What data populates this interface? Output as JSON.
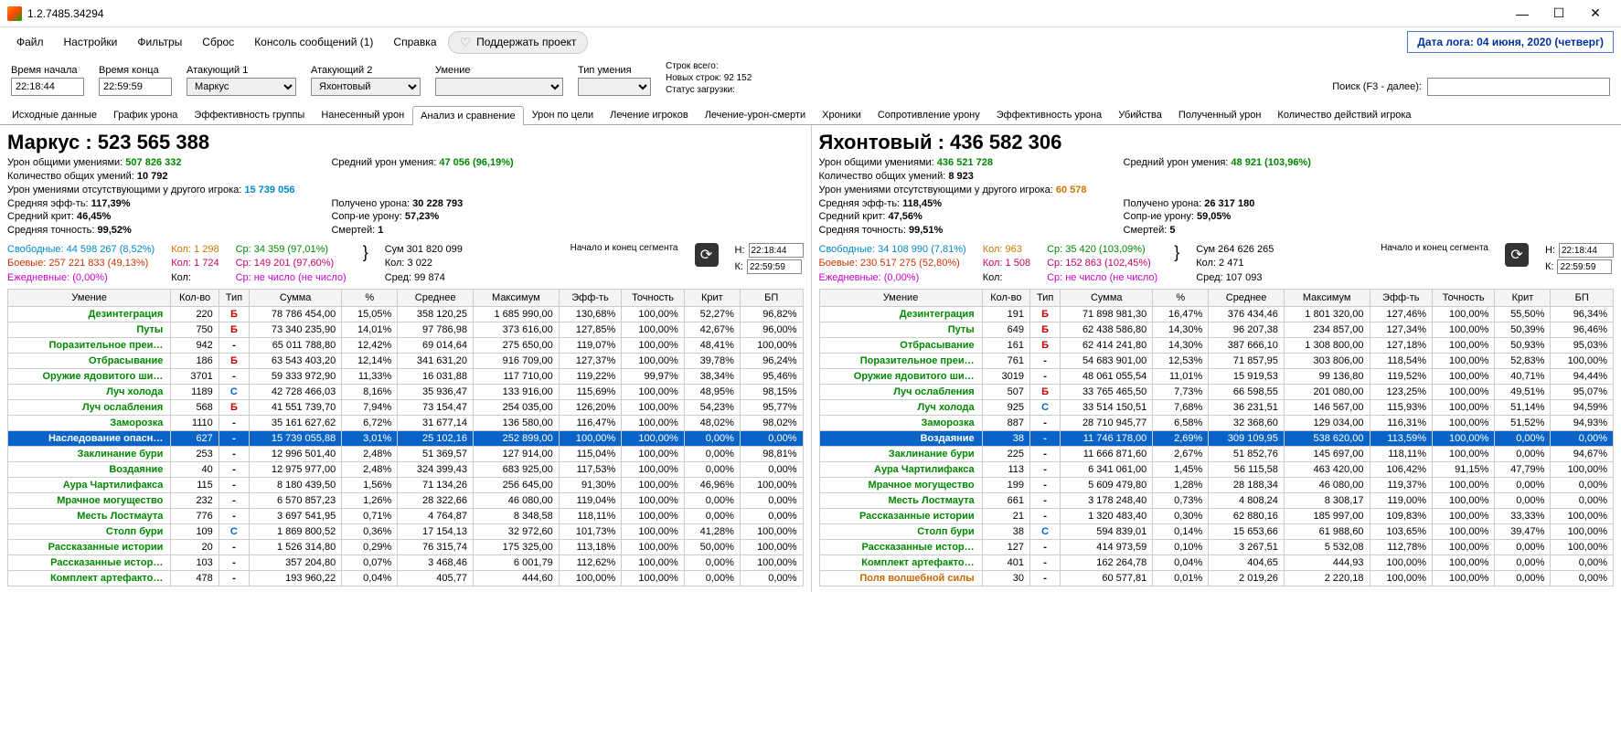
{
  "window": {
    "title": "1.2.7485.34294"
  },
  "menu": {
    "file": "Файл",
    "settings": "Настройки",
    "filters": "Фильтры",
    "reset": "Сброс",
    "console": "Консоль сообщений (1)",
    "help": "Справка",
    "support": "Поддержать проект"
  },
  "datelog": "Дата лога: 04 июня, 2020  (четверг)",
  "filters": {
    "time_start_lbl": "Время начала",
    "time_start": "22:18:44",
    "time_end_lbl": "Время конца",
    "time_end": "22:59:59",
    "att1_lbl": "Атакующий 1",
    "att1": "Маркус",
    "att2_lbl": "Атакующий 2",
    "att2": "Яхонтовый",
    "skill_lbl": "Умение",
    "skill": "",
    "skilltype_lbl": "Тип умения",
    "skilltype": "",
    "lines_total": "Строк всего:",
    "lines_new": "Новых строк: 92 152",
    "load_status": "Статус загрузки:",
    "search_lbl": "Поиск (F3 - далее):"
  },
  "tabs": [
    "Исходные данные",
    "График урона",
    "Эффективность группы",
    "Нанесенный урон",
    "Анализ и сравнение",
    "Урон по цели",
    "Лечение игроков",
    "Лечение-урон-смерти",
    "Хроники",
    "Сопротивление урону",
    "Эффективность урона",
    "Убийства",
    "Полученный урон",
    "Количество действий игрока"
  ],
  "active_tab": 4,
  "seg_lbl": "Начало и конец\nсегмента",
  "cols": [
    "Умение",
    "Кол-во",
    "Тип",
    "Сумма",
    "%",
    "Среднее",
    "Максимум",
    "Эфф-ть",
    "Точность",
    "Крит",
    "БП"
  ],
  "left": {
    "title_name": "Маркус : ",
    "title_num": "523 565 388",
    "l1a": "Урон общими умениями: ",
    "l1b": "507 826 332",
    "l1c": "Средний урон умения: ",
    "l1d": "47 056 (96,19%)",
    "l2a": "Количество общих умений: ",
    "l2b": "10 792",
    "l3a": "Урон умениями отсутствующими у другого игрока: ",
    "l3b": "15 739 056",
    "l4a": "Средняя эфф-ть: ",
    "l4b": "117,39%",
    "l4c": "Получено урона: ",
    "l4d": "30 228 793",
    "l5a": "Средний крит: ",
    "l5b": "46,45%",
    "l5c": "Сопр-ие урону: ",
    "l5d": "57,23%",
    "l6a": "Средняя точность: ",
    "l6b": "99,52%",
    "l6c": "Смертей: ",
    "l6d": "1",
    "s_free": "Свободные: 44 598 267 (8,52%)",
    "s_combat": "Боевые: 257 221 833 (49,13%)",
    "s_daily": "Ежедневные: (0,00%)",
    "s_n1": "Кол: 1 298",
    "s_n2": "Кол: 1 724",
    "s_n3": "Кол:",
    "s_avg1": "Ср: 34 359 (97,01%)",
    "s_avg2": "Ср: 149 201 (97,60%)",
    "s_nan": "Ср: не число (не число)",
    "s_sum": "Сум 301 820 099",
    "s_cnt": "Кол: 3 022",
    "s_mid": "Сред: 99 874",
    "seg_h": "22:18:44",
    "seg_k": "22:59:59",
    "rows": [
      {
        "s": "Дезинтеграция",
        "sc": "g",
        "n": "220",
        "t": "Б",
        "sum": "78 786 454,00",
        "p": "15,05%",
        "avg": "358 120,25",
        "max": "1 685 990,00",
        "e": "130,68%",
        "acc": "100,00%",
        "cr": "52,27%",
        "bp": "96,82%"
      },
      {
        "s": "Путы",
        "sc": "g",
        "n": "750",
        "t": "Б",
        "sum": "73 340 235,90",
        "p": "14,01%",
        "avg": "97 786,98",
        "max": "373 616,00",
        "e": "127,85%",
        "acc": "100,00%",
        "cr": "42,67%",
        "bp": "96,00%"
      },
      {
        "s": "Поразительное преи…",
        "sc": "g",
        "n": "942",
        "t": "-",
        "sum": "65 011 788,80",
        "p": "12,42%",
        "avg": "69 014,64",
        "max": "275 650,00",
        "e": "119,07%",
        "acc": "100,00%",
        "cr": "48,41%",
        "bp": "100,00%"
      },
      {
        "s": "Отбрасывание",
        "sc": "g",
        "n": "186",
        "t": "Б",
        "sum": "63 543 403,20",
        "p": "12,14%",
        "avg": "341 631,20",
        "max": "916 709,00",
        "e": "127,37%",
        "acc": "100,00%",
        "cr": "39,78%",
        "bp": "96,24%"
      },
      {
        "s": "Оружие ядовитого ши…",
        "sc": "g",
        "n": "3701",
        "t": "-",
        "sum": "59 333 972,90",
        "p": "11,33%",
        "avg": "16 031,88",
        "max": "117 710,00",
        "e": "119,22%",
        "acc": "99,97%",
        "cr": "38,34%",
        "bp": "95,46%"
      },
      {
        "s": "Луч холода",
        "sc": "g",
        "n": "1189",
        "t": "С",
        "sum": "42 728 466,03",
        "p": "8,16%",
        "avg": "35 936,47",
        "max": "133 916,00",
        "e": "115,69%",
        "acc": "100,00%",
        "cr": "48,95%",
        "bp": "98,15%"
      },
      {
        "s": "Луч ослабления",
        "sc": "g",
        "n": "568",
        "t": "Б",
        "sum": "41 551 739,70",
        "p": "7,94%",
        "avg": "73 154,47",
        "max": "254 035,00",
        "e": "126,20%",
        "acc": "100,00%",
        "cr": "54,23%",
        "bp": "95,77%"
      },
      {
        "s": "Заморозка",
        "sc": "g",
        "n": "1110",
        "t": "-",
        "sum": "35 161 627,62",
        "p": "6,72%",
        "avg": "31 677,14",
        "max": "136 580,00",
        "e": "116,47%",
        "acc": "100,00%",
        "cr": "48,02%",
        "bp": "98,02%"
      },
      {
        "s": "Наследование опасн…",
        "sc": "g",
        "n": "627",
        "t": "-",
        "sum": "15 739 055,88",
        "p": "3,01%",
        "avg": "25 102,16",
        "max": "252 899,00",
        "e": "100,00%",
        "acc": "100,00%",
        "cr": "0,00%",
        "bp": "0,00%",
        "sel": true
      },
      {
        "s": "Заклинание бури",
        "sc": "g",
        "n": "253",
        "t": "-",
        "sum": "12 996 501,40",
        "p": "2,48%",
        "avg": "51 369,57",
        "max": "127 914,00",
        "e": "115,04%",
        "acc": "100,00%",
        "cr": "0,00%",
        "bp": "98,81%"
      },
      {
        "s": "Воздаяние",
        "sc": "g",
        "n": "40",
        "t": "-",
        "sum": "12 975 977,00",
        "p": "2,48%",
        "avg": "324 399,43",
        "max": "683 925,00",
        "e": "117,53%",
        "acc": "100,00%",
        "cr": "0,00%",
        "bp": "0,00%"
      },
      {
        "s": "Аура Чартилифакса",
        "sc": "g",
        "n": "115",
        "t": "-",
        "sum": "8 180 439,50",
        "p": "1,56%",
        "avg": "71 134,26",
        "max": "256 645,00",
        "e": "91,30%",
        "acc": "100,00%",
        "cr": "46,96%",
        "bp": "100,00%"
      },
      {
        "s": "Мрачное могущество",
        "sc": "g",
        "n": "232",
        "t": "-",
        "sum": "6 570 857,23",
        "p": "1,26%",
        "avg": "28 322,66",
        "max": "46 080,00",
        "e": "119,04%",
        "acc": "100,00%",
        "cr": "0,00%",
        "bp": "0,00%"
      },
      {
        "s": "Месть Лостмаута",
        "sc": "g",
        "n": "776",
        "t": "-",
        "sum": "3 697 541,95",
        "p": "0,71%",
        "avg": "4 764,87",
        "max": "8 348,58",
        "e": "118,11%",
        "acc": "100,00%",
        "cr": "0,00%",
        "bp": "0,00%"
      },
      {
        "s": "Столп бури",
        "sc": "g",
        "n": "109",
        "t": "С",
        "sum": "1 869 800,52",
        "p": "0,36%",
        "avg": "17 154,13",
        "max": "32 972,60",
        "e": "101,73%",
        "acc": "100,00%",
        "cr": "41,28%",
        "bp": "100,00%"
      },
      {
        "s": "Рассказанные истории",
        "sc": "g",
        "n": "20",
        "t": "-",
        "sum": "1 526 314,80",
        "p": "0,29%",
        "avg": "76 315,74",
        "max": "175 325,00",
        "e": "113,18%",
        "acc": "100,00%",
        "cr": "50,00%",
        "bp": "100,00%"
      },
      {
        "s": "Рассказанные истор…",
        "sc": "g",
        "n": "103",
        "t": "-",
        "sum": "357 204,80",
        "p": "0,07%",
        "avg": "3 468,46",
        "max": "6 001,79",
        "e": "112,62%",
        "acc": "100,00%",
        "cr": "0,00%",
        "bp": "100,00%"
      },
      {
        "s": "Комплект артефакто…",
        "sc": "g",
        "n": "478",
        "t": "-",
        "sum": "193 960,22",
        "p": "0,04%",
        "avg": "405,77",
        "max": "444,60",
        "e": "100,00%",
        "acc": "100,00%",
        "cr": "0,00%",
        "bp": "0,00%"
      }
    ]
  },
  "right": {
    "title_name": "Яхонтовый : ",
    "title_num": "436 582 306",
    "l1a": "Урон общими умениями: ",
    "l1b": "436 521 728",
    "l1c": "Средний урон умения: ",
    "l1d": "48 921 (103,96%)",
    "l2a": "Количество общих умений: ",
    "l2b": "8 923",
    "l3a": "Урон умениями отсутствующими у другого игрока: ",
    "l3b": "60 578",
    "l4a": "Средняя эфф-ть: ",
    "l4b": "118,45%",
    "l4c": "Получено урона: ",
    "l4d": "26 317 180",
    "l5a": "Средний крит: ",
    "l5b": "47,56%",
    "l5c": "Сопр-ие урону: ",
    "l5d": "59,05%",
    "l6a": "Средняя точность: ",
    "l6b": "99,51%",
    "l6c": "Смертей: ",
    "l6d": "5",
    "s_free": "Свободные: 34 108 990 (7,81%)",
    "s_combat": "Боевые: 230 517 275 (52,80%)",
    "s_daily": "Ежедневные: (0,00%)",
    "s_n1": "Кол: 963",
    "s_n2": "Кол: 1 508",
    "s_n3": "Кол:",
    "s_avg1": "Ср: 35 420 (103,09%)",
    "s_avg2": "Ср: 152 863 (102,45%)",
    "s_nan": "Ср: не число (не число)",
    "s_sum": "Сум 264 626 265",
    "s_cnt": "Кол: 2 471",
    "s_mid": "Сред: 107 093",
    "seg_h": "22:18:44",
    "seg_k": "22:59:59",
    "rows": [
      {
        "s": "Дезинтеграция",
        "sc": "g",
        "n": "191",
        "t": "Б",
        "sum": "71 898 981,30",
        "p": "16,47%",
        "avg": "376 434,46",
        "max": "1 801 320,00",
        "e": "127,46%",
        "acc": "100,00%",
        "cr": "55,50%",
        "bp": "96,34%"
      },
      {
        "s": "Путы",
        "sc": "g",
        "n": "649",
        "t": "Б",
        "sum": "62 438 586,80",
        "p": "14,30%",
        "avg": "96 207,38",
        "max": "234 857,00",
        "e": "127,34%",
        "acc": "100,00%",
        "cr": "50,39%",
        "bp": "96,46%"
      },
      {
        "s": "Отбрасывание",
        "sc": "g",
        "n": "161",
        "t": "Б",
        "sum": "62 414 241,80",
        "p": "14,30%",
        "avg": "387 666,10",
        "max": "1 308 800,00",
        "e": "127,18%",
        "acc": "100,00%",
        "cr": "50,93%",
        "bp": "95,03%"
      },
      {
        "s": "Поразительное преи…",
        "sc": "g",
        "n": "761",
        "t": "-",
        "sum": "54 683 901,00",
        "p": "12,53%",
        "avg": "71 857,95",
        "max": "303 806,00",
        "e": "118,54%",
        "acc": "100,00%",
        "cr": "52,83%",
        "bp": "100,00%"
      },
      {
        "s": "Оружие ядовитого ши…",
        "sc": "g",
        "n": "3019",
        "t": "-",
        "sum": "48 061 055,54",
        "p": "11,01%",
        "avg": "15 919,53",
        "max": "99 136,80",
        "e": "119,52%",
        "acc": "100,00%",
        "cr": "40,71%",
        "bp": "94,44%"
      },
      {
        "s": "Луч ослабления",
        "sc": "g",
        "n": "507",
        "t": "Б",
        "sum": "33 765 465,50",
        "p": "7,73%",
        "avg": "66 598,55",
        "max": "201 080,00",
        "e": "123,25%",
        "acc": "100,00%",
        "cr": "49,51%",
        "bp": "95,07%"
      },
      {
        "s": "Луч холода",
        "sc": "g",
        "n": "925",
        "t": "С",
        "sum": "33 514 150,51",
        "p": "7,68%",
        "avg": "36 231,51",
        "max": "146 567,00",
        "e": "115,93%",
        "acc": "100,00%",
        "cr": "51,14%",
        "bp": "94,59%"
      },
      {
        "s": "Заморозка",
        "sc": "g",
        "n": "887",
        "t": "-",
        "sum": "28 710 945,77",
        "p": "6,58%",
        "avg": "32 368,60",
        "max": "129 034,00",
        "e": "116,31%",
        "acc": "100,00%",
        "cr": "51,52%",
        "bp": "94,93%"
      },
      {
        "s": "Воздаяние",
        "sc": "g",
        "n": "38",
        "t": "-",
        "sum": "11 746 178,00",
        "p": "2,69%",
        "avg": "309 109,95",
        "max": "538 620,00",
        "e": "113,59%",
        "acc": "100,00%",
        "cr": "0,00%",
        "bp": "0,00%",
        "sel": true
      },
      {
        "s": "Заклинание бури",
        "sc": "g",
        "n": "225",
        "t": "-",
        "sum": "11 666 871,60",
        "p": "2,67%",
        "avg": "51 852,76",
        "max": "145 697,00",
        "e": "118,11%",
        "acc": "100,00%",
        "cr": "0,00%",
        "bp": "94,67%"
      },
      {
        "s": "Аура Чартилифакса",
        "sc": "g",
        "n": "113",
        "t": "-",
        "sum": "6 341 061,00",
        "p": "1,45%",
        "avg": "56 115,58",
        "max": "463 420,00",
        "e": "106,42%",
        "acc": "91,15%",
        "cr": "47,79%",
        "bp": "100,00%"
      },
      {
        "s": "Мрачное могущество",
        "sc": "g",
        "n": "199",
        "t": "-",
        "sum": "5 609 479,80",
        "p": "1,28%",
        "avg": "28 188,34",
        "max": "46 080,00",
        "e": "119,37%",
        "acc": "100,00%",
        "cr": "0,00%",
        "bp": "0,00%"
      },
      {
        "s": "Месть Лостмаута",
        "sc": "g",
        "n": "661",
        "t": "-",
        "sum": "3 178 248,40",
        "p": "0,73%",
        "avg": "4 808,24",
        "max": "8 308,17",
        "e": "119,00%",
        "acc": "100,00%",
        "cr": "0,00%",
        "bp": "0,00%"
      },
      {
        "s": "Рассказанные истории",
        "sc": "g",
        "n": "21",
        "t": "-",
        "sum": "1 320 483,40",
        "p": "0,30%",
        "avg": "62 880,16",
        "max": "185 997,00",
        "e": "109,83%",
        "acc": "100,00%",
        "cr": "33,33%",
        "bp": "100,00%"
      },
      {
        "s": "Столп бури",
        "sc": "g",
        "n": "38",
        "t": "С",
        "sum": "594 839,01",
        "p": "0,14%",
        "avg": "15 653,66",
        "max": "61 988,60",
        "e": "103,65%",
        "acc": "100,00%",
        "cr": "39,47%",
        "bp": "100,00%"
      },
      {
        "s": "Рассказанные истор…",
        "sc": "g",
        "n": "127",
        "t": "-",
        "sum": "414 973,59",
        "p": "0,10%",
        "avg": "3 267,51",
        "max": "5 532,08",
        "e": "112,78%",
        "acc": "100,00%",
        "cr": "0,00%",
        "bp": "100,00%"
      },
      {
        "s": "Комплект артефакто…",
        "sc": "g",
        "n": "401",
        "t": "-",
        "sum": "162 264,78",
        "p": "0,04%",
        "avg": "404,65",
        "max": "444,93",
        "e": "100,00%",
        "acc": "100,00%",
        "cr": "0,00%",
        "bp": "0,00%"
      },
      {
        "s": "Поля волшебной силы",
        "sc": "o",
        "n": "30",
        "t": "-",
        "sum": "60 577,81",
        "p": "0,01%",
        "avg": "2 019,26",
        "max": "2 220,18",
        "e": "100,00%",
        "acc": "100,00%",
        "cr": "0,00%",
        "bp": "0,00%"
      }
    ]
  }
}
